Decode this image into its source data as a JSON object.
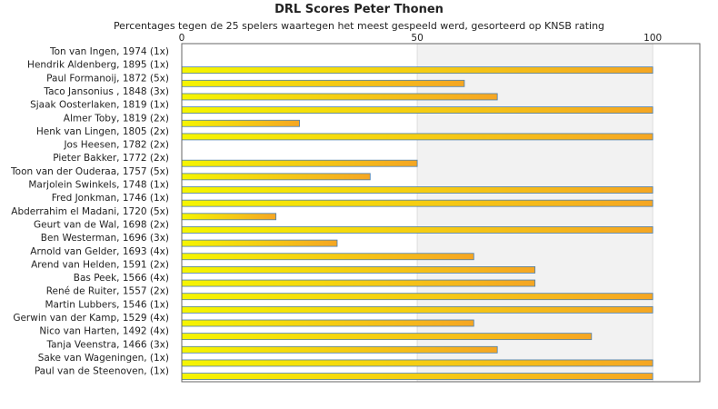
{
  "chart_data": {
    "type": "bar",
    "orientation": "horizontal",
    "title": "DRL Scores Peter Thonen",
    "subtitle": "Percentages tegen de 25 spelers waartegen het meest gespeeld werd, gesorteerd op KNSB rating",
    "xlabel": "",
    "ylabel": "",
    "xlim": [
      0,
      110
    ],
    "xticks": [
      0,
      50,
      100
    ],
    "grid": true,
    "legend": "none",
    "colors": {
      "bar_start": "#f5f500",
      "bar_end": "#f5a623",
      "bar_edge": "#4a7fb0",
      "band": "#f2f2f2",
      "plot_border": "#666666"
    },
    "categories": [
      "Ton van Ingen, 1974 (1x)",
      "Hendrik Aldenberg, 1895 (1x)",
      "Paul Formanoij, 1872 (5x)",
      "Taco Jansonius , 1848 (3x)",
      "Sjaak Oosterlaken, 1819 (1x)",
      "Almer Toby, 1819 (2x)",
      "Henk van Lingen, 1805 (2x)",
      "Jos Heesen, 1782 (2x)",
      "Pieter Bakker, 1772 (2x)",
      "Toon van der Ouderaa, 1757 (5x)",
      "Marjolein Swinkels, 1748 (1x)",
      "Fred Jonkman, 1746 (1x)",
      "Abderrahim el Madani, 1720 (5x)",
      "Geurt van de Wal, 1698 (2x)",
      "Ben Westerman, 1696 (3x)",
      "Arnold van Gelder, 1693 (4x)",
      "Arend van Helden, 1591 (2x)",
      "Bas Peek, 1566 (4x)",
      "René de Ruiter, 1557 (2x)",
      "Martin Lubbers, 1546 (1x)",
      "Gerwin van der Kamp, 1529 (4x)",
      "Nico van Harten, 1492 (4x)",
      "Tanja Veenstra, 1466 (3x)",
      "Sake van Wageningen,  (1x)",
      "Paul van de Steenoven,  (1x)"
    ],
    "values": [
      0,
      100,
      60,
      67,
      100,
      25,
      100,
      0,
      50,
      40,
      100,
      100,
      20,
      100,
      33,
      62,
      75,
      75,
      100,
      100,
      62,
      87,
      67,
      100,
      100
    ]
  }
}
